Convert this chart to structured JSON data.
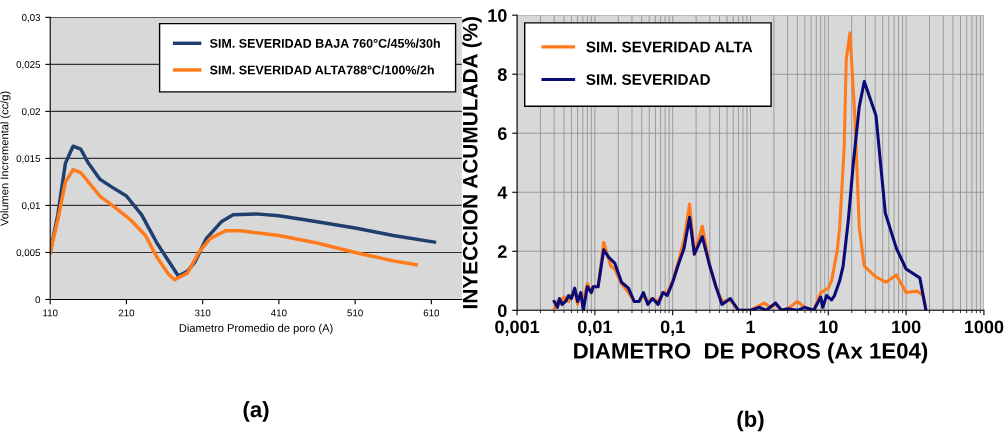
{
  "chart_data": [
    {
      "type": "line",
      "xlabel": "Diametro Promedio de poro (A)",
      "ylabel": "Volumen Incremental (cc/g)",
      "annotations": [
        "(a)"
      ],
      "xlim": [
        110,
        650
      ],
      "xticks": [
        110,
        210,
        310,
        410,
        510,
        610
      ],
      "ylim": [
        0,
        0.03
      ],
      "yticks": [
        {
          "value": 0,
          "label": "0"
        },
        {
          "value": 0.005,
          "label": "0,005"
        },
        {
          "value": 0.01,
          "label": "0,01"
        },
        {
          "value": 0.015,
          "label": "0,015"
        },
        {
          "value": 0.02,
          "label": "0,02"
        },
        {
          "value": 0.025,
          "label": "0,025"
        },
        {
          "value": 0.03,
          "label": "0,03"
        }
      ],
      "grid": "y",
      "legend": "top right",
      "marker": "none",
      "line_style": "solid",
      "series": [
        {
          "name": "SIM. SEVERIDAD BAJA 760°C/45%/30h",
          "color": "#1f3f6e",
          "x": [
            110,
            120,
            130,
            140,
            150,
            160,
            175,
            190,
            210,
            230,
            250,
            270,
            278,
            290,
            300,
            315,
            335,
            350,
            380,
            410,
            450,
            510,
            560,
            614
          ],
          "values": [
            0.005,
            0.009,
            0.0145,
            0.0163,
            0.016,
            0.0145,
            0.0128,
            0.012,
            0.011,
            0.009,
            0.006,
            0.0035,
            0.0025,
            0.003,
            0.004,
            0.0065,
            0.0083,
            0.009,
            0.0091,
            0.0089,
            0.0084,
            0.0076,
            0.0068,
            0.0061
          ]
        },
        {
          "name": "SIM. SEVERIDAD ALTA788°C/100%/2h",
          "color": "#ff7a1a",
          "x": [
            110,
            120,
            130,
            140,
            150,
            165,
            175,
            195,
            215,
            235,
            250,
            265,
            273,
            290,
            305,
            320,
            340,
            360,
            410,
            460,
            510,
            560,
            590
          ],
          "values": [
            0.005,
            0.0085,
            0.0125,
            0.0138,
            0.0135,
            0.012,
            0.011,
            0.0098,
            0.0085,
            0.0068,
            0.0045,
            0.0027,
            0.0021,
            0.0028,
            0.005,
            0.0065,
            0.0073,
            0.0073,
            0.0068,
            0.006,
            0.005,
            0.0041,
            0.0037
          ]
        }
      ]
    },
    {
      "type": "line",
      "xlabel": "DIAMETRO  DE POROS (Ax 1E04)",
      "ylabel": "INYECCION ACUMULADA (%)",
      "annotations": [
        "(b)"
      ],
      "log": "x",
      "xlim": [
        0.001,
        1000
      ],
      "xticks": [
        {
          "value": 0.001,
          "label": "0,001"
        },
        {
          "value": 0.01,
          "label": "0,01"
        },
        {
          "value": 0.1,
          "label": "0,1"
        },
        1,
        10,
        100,
        1000
      ],
      "ylim": [
        0,
        10
      ],
      "yticks": [
        0,
        2,
        4,
        6,
        8,
        10
      ],
      "grid": true,
      "legend": "top left",
      "marker": "none",
      "line_style": "solid",
      "series": [
        {
          "name": "SIM. SEVERIDAD ALTA",
          "color": "#ff7a1a",
          "x": [
            0.003,
            0.0033,
            0.0035,
            0.004,
            0.0046,
            0.005,
            0.0055,
            0.006,
            0.0066,
            0.0071,
            0.008,
            0.009,
            0.0095,
            0.011,
            0.013,
            0.016,
            0.018,
            0.022,
            0.027,
            0.032,
            0.037,
            0.042,
            0.048,
            0.055,
            0.065,
            0.075,
            0.085,
            0.1,
            0.12,
            0.14,
            0.165,
            0.19,
            0.24,
            0.3,
            0.36,
            0.43,
            0.55,
            0.7,
            1,
            1.5,
            1.8,
            2.1,
            2.5,
            3,
            4,
            5,
            6.5,
            8,
            10,
            11,
            13,
            14,
            16,
            17,
            19,
            22,
            25,
            29,
            40,
            55,
            75,
            100,
            140,
            165,
            180
          ],
          "values": [
            0.05,
            0.3,
            0.2,
            0.45,
            0.3,
            0.5,
            0.7,
            0.2,
            0.6,
            0.3,
            0.9,
            0.6,
            0.8,
            0.8,
            2.3,
            1.5,
            1.4,
            0.9,
            0.6,
            0.3,
            0.3,
            0.5,
            0.3,
            0.4,
            0.3,
            0.6,
            0.6,
            1.0,
            1.7,
            2.4,
            3.6,
            1.9,
            2.85,
            1.5,
            0.8,
            0.3,
            0.35,
            0,
            0,
            0.25,
            0.1,
            0.2,
            0,
            0.05,
            0.3,
            0.1,
            0,
            0.6,
            0.75,
            1.0,
            2.0,
            2.8,
            5.5,
            8.5,
            9.4,
            6.5,
            2.8,
            1.5,
            1.15,
            0.95,
            1.2,
            0.6,
            0.65,
            0.5,
            0
          ]
        },
        {
          "name": "SIM. SEVERIDAD",
          "color": "#0a0a78",
          "x": [
            0.003,
            0.0033,
            0.0035,
            0.0038,
            0.0042,
            0.0046,
            0.005,
            0.0055,
            0.006,
            0.0066,
            0.0071,
            0.008,
            0.009,
            0.0095,
            0.011,
            0.013,
            0.015,
            0.018,
            0.022,
            0.027,
            0.032,
            0.037,
            0.042,
            0.048,
            0.055,
            0.065,
            0.075,
            0.085,
            0.1,
            0.12,
            0.14,
            0.165,
            0.19,
            0.24,
            0.3,
            0.36,
            0.43,
            0.55,
            0.7,
            1,
            1.3,
            1.6,
            2.1,
            2.5,
            3,
            4,
            5,
            6.5,
            8,
            8.5,
            9.5,
            11,
            12,
            14,
            15.5,
            18,
            21,
            25,
            29,
            41,
            54,
            75,
            100,
            150,
            180
          ],
          "values": [
            0.3,
            0.1,
            0.4,
            0.2,
            0.3,
            0.5,
            0.4,
            0.75,
            0.3,
            0.6,
            0,
            0.8,
            0.6,
            0.8,
            0.8,
            2.05,
            1.8,
            1.6,
            0.95,
            0.75,
            0.3,
            0.3,
            0.6,
            0.2,
            0.4,
            0.2,
            0.6,
            0.5,
            0.95,
            1.6,
            2.1,
            3.15,
            1.9,
            2.5,
            1.5,
            0.8,
            0.2,
            0.4,
            0,
            0,
            0.1,
            0,
            0.25,
            0,
            0.05,
            0,
            0.1,
            0,
            0.45,
            0.1,
            0.5,
            0.35,
            0.5,
            1.0,
            1.5,
            3.0,
            5.0,
            6.9,
            7.75,
            6.6,
            3.3,
            2.1,
            1.4,
            1.1,
            0
          ]
        }
      ]
    }
  ]
}
